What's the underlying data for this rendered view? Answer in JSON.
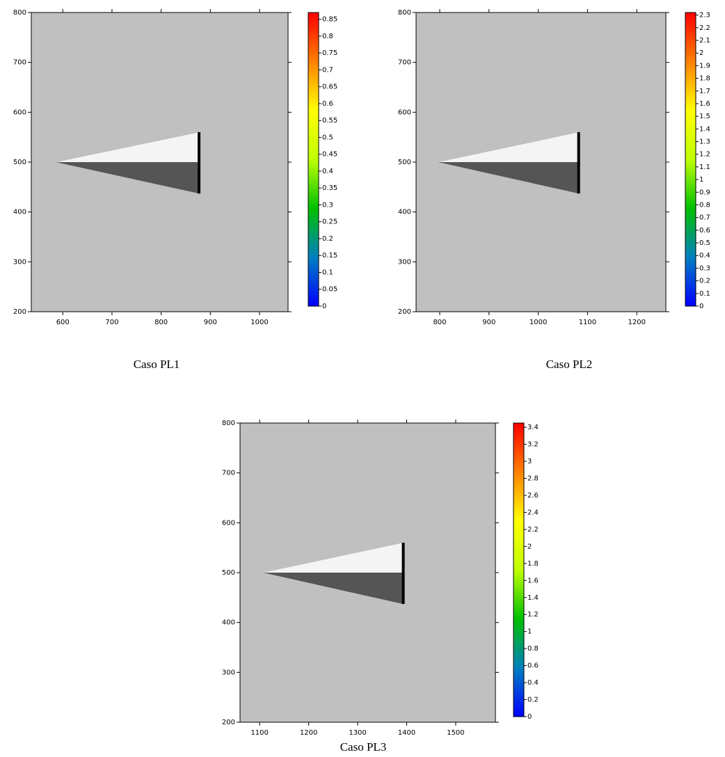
{
  "chart_data": [
    {
      "type": "quiver",
      "title": "Caso PL1",
      "xlim": [
        536,
        1058
      ],
      "ylim": [
        200,
        800
      ],
      "xticks": [
        600,
        700,
        800,
        900,
        1000
      ],
      "yticks": [
        200,
        300,
        400,
        500,
        600,
        700,
        800
      ],
      "colorbar": {
        "lim": [
          0,
          0.87
        ],
        "ticks": [
          0,
          0.05,
          0.1,
          0.15,
          0.2,
          0.25,
          0.3,
          0.35,
          0.4,
          0.45,
          0.5,
          0.55,
          0.6,
          0.65,
          0.7,
          0.75,
          0.8,
          0.85
        ],
        "colors": [
          "#0000ff",
          "#0080c0",
          "#00c000",
          "#c0ff00",
          "#ffff00",
          "#ff8000",
          "#ff0000"
        ]
      },
      "body": {
        "x": [
          586,
          877,
          877
        ],
        "y": [
          500,
          560,
          437
        ]
      }
    },
    {
      "type": "quiver",
      "title": "Caso PL2",
      "xlim": [
        752,
        1259
      ],
      "ylim": [
        200,
        800
      ],
      "xticks": [
        800,
        900,
        1000,
        1100,
        1200
      ],
      "yticks": [
        200,
        300,
        400,
        500,
        600,
        700,
        800
      ],
      "colorbar": {
        "lim": [
          0,
          2.32
        ],
        "ticks": [
          0,
          0.1,
          0.2,
          0.3,
          0.4,
          0.5,
          0.6,
          0.7,
          0.8,
          0.9,
          1,
          1.1,
          1.2,
          1.3,
          1.4,
          1.5,
          1.6,
          1.7,
          1.8,
          1.9,
          2,
          2.1,
          2.2,
          2.3
        ],
        "colors": [
          "#0000ff",
          "#0080c0",
          "#00c000",
          "#c0ff00",
          "#ffff00",
          "#ff8000",
          "#ff0000"
        ]
      },
      "body": {
        "x": [
          797,
          1082,
          1082
        ],
        "y": [
          500,
          560,
          437
        ]
      }
    },
    {
      "type": "quiver",
      "title": "Caso PL3",
      "xlim": [
        1060,
        1581
      ],
      "ylim": [
        200,
        800
      ],
      "xticks": [
        1100,
        1200,
        1300,
        1400,
        1500
      ],
      "yticks": [
        200,
        300,
        400,
        500,
        600,
        700,
        800
      ],
      "colorbar": {
        "lim": [
          0,
          3.45
        ],
        "ticks": [
          0,
          0.2,
          0.4,
          0.6,
          0.8,
          1,
          1.2,
          1.4,
          1.6,
          1.8,
          2,
          2.2,
          2.4,
          2.6,
          2.8,
          3,
          3.2,
          3.4
        ],
        "colors": [
          "#0000ff",
          "#0080c0",
          "#00c000",
          "#c0ff00",
          "#ffff00",
          "#ff8000",
          "#ff0000"
        ]
      },
      "body": {
        "x": [
          1107,
          1393,
          1393
        ],
        "y": [
          500,
          560,
          437
        ]
      }
    }
  ]
}
